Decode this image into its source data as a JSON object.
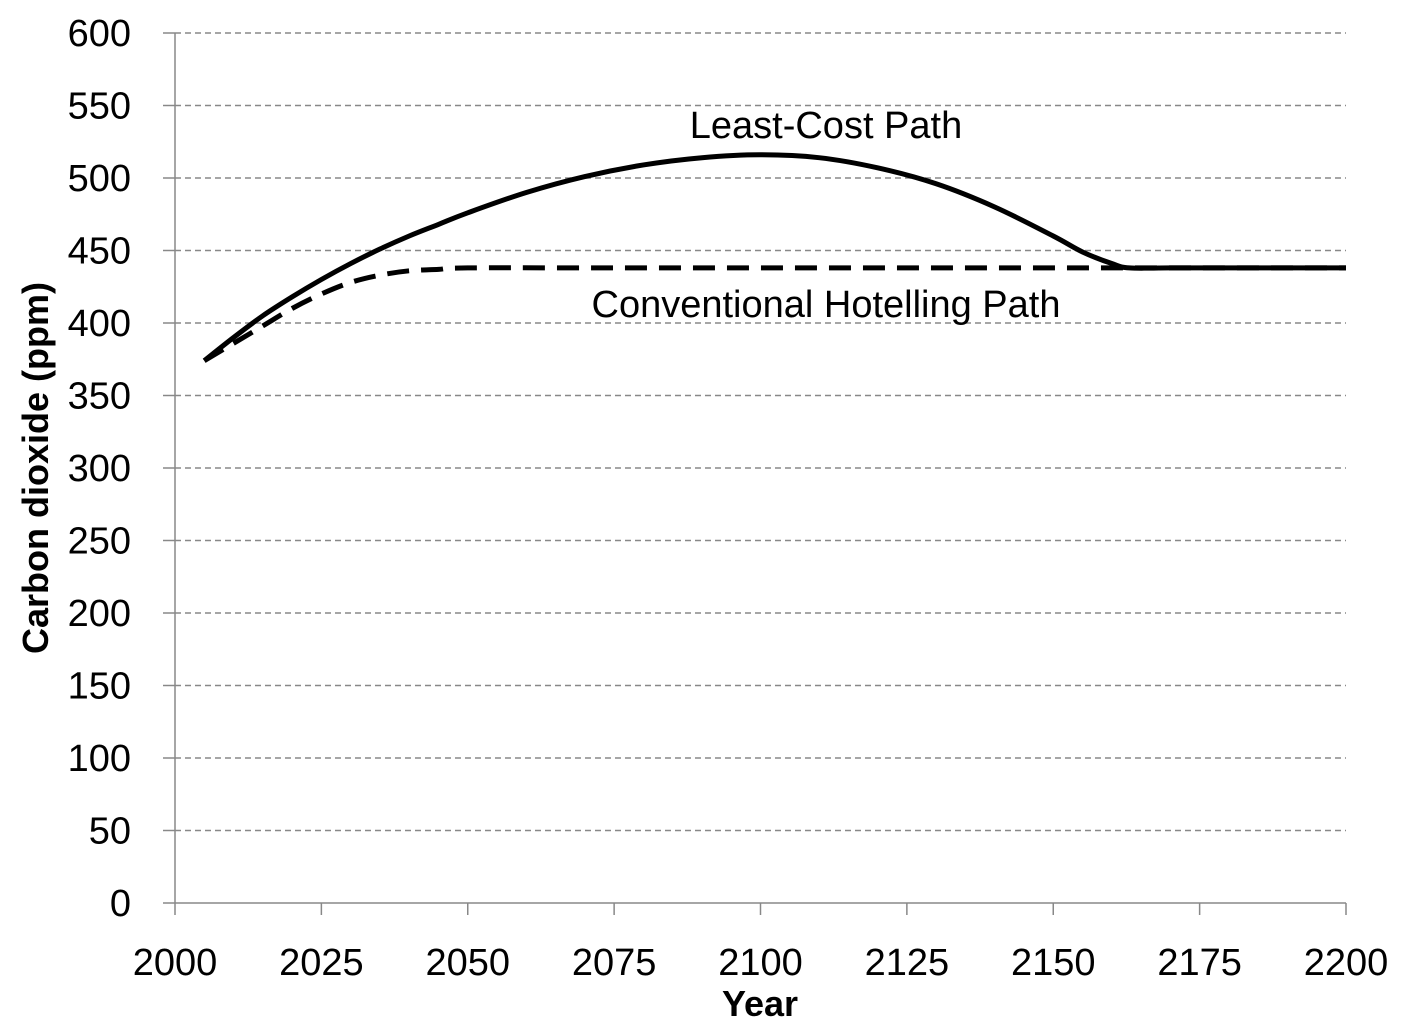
{
  "chart_data": {
    "type": "line",
    "title": "",
    "xlabel": "Year",
    "ylabel": "Carbon dioxide (ppm)",
    "xlim": [
      2000,
      2200
    ],
    "ylim": [
      0,
      600
    ],
    "x_ticks": [
      "2000",
      "2025",
      "2050",
      "2075",
      "2100",
      "2125",
      "2150",
      "2175",
      "2200"
    ],
    "y_ticks": [
      "0",
      "50",
      "100",
      "150",
      "200",
      "250",
      "300",
      "350",
      "400",
      "450",
      "500",
      "550",
      "600"
    ],
    "grid": true,
    "legend": "none",
    "series": [
      {
        "name": "Least-Cost Path",
        "style": "solid",
        "color": "#000000",
        "x": [
          2005,
          2010,
          2015,
          2020,
          2025,
          2030,
          2035,
          2040,
          2045,
          2050,
          2060,
          2070,
          2080,
          2090,
          2100,
          2110,
          2120,
          2130,
          2140,
          2150,
          2155,
          2160,
          2163,
          2170,
          2180,
          2190,
          2200
        ],
        "y": [
          374,
          390,
          405,
          418,
          430,
          441,
          451,
          460,
          468,
          476,
          490,
          501,
          509,
          514,
          516,
          514,
          507,
          496,
          480,
          460,
          449,
          441,
          438,
          438,
          438,
          438,
          438
        ]
      },
      {
        "name": "Conventional Hotelling Path",
        "style": "dashed",
        "color": "#000000",
        "x": [
          2005,
          2010,
          2015,
          2020,
          2025,
          2030,
          2035,
          2040,
          2045,
          2050,
          2075,
          2100,
          2125,
          2150,
          2175,
          2200
        ],
        "y": [
          374,
          386,
          398,
          410,
          420,
          428,
          433,
          436,
          437,
          438,
          438,
          438,
          438,
          438,
          438,
          438
        ]
      }
    ],
    "annotations": [
      "Least-Cost Path",
      "Conventional Hotelling Path"
    ]
  }
}
